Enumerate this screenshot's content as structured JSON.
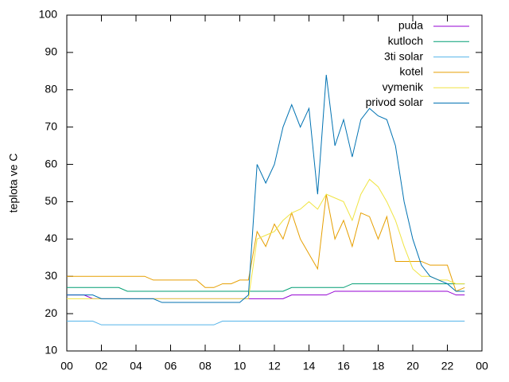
{
  "chart_data": {
    "type": "line",
    "ylabel": "teplota ve C",
    "x": [
      0,
      0.5,
      1,
      1.5,
      2,
      2.5,
      3,
      3.5,
      4,
      4.5,
      5,
      5.5,
      6,
      6.5,
      7,
      7.5,
      8,
      8.5,
      9,
      9.5,
      10,
      10.5,
      11,
      11.5,
      12,
      12.5,
      13,
      13.5,
      14,
      14.5,
      15,
      15.5,
      16,
      16.5,
      17,
      17.5,
      18,
      18.5,
      19,
      19.5,
      20,
      20.5,
      21,
      21.5,
      22,
      22.5,
      23
    ],
    "xlim": [
      0,
      24
    ],
    "xticks": [
      {
        "value": 0,
        "label": "00"
      },
      {
        "value": 2,
        "label": "02"
      },
      {
        "value": 4,
        "label": "04"
      },
      {
        "value": 6,
        "label": "06"
      },
      {
        "value": 8,
        "label": "08"
      },
      10,
      12,
      14,
      16,
      18,
      20,
      22,
      {
        "value": 24,
        "label": "00"
      }
    ],
    "ylim": [
      10,
      100
    ],
    "yticks": [
      10,
      20,
      30,
      40,
      50,
      60,
      70,
      80,
      90,
      100
    ],
    "legend": "top-right",
    "series": [
      {
        "name": "puda",
        "color": "#9400d3",
        "values": [
          25,
          25,
          25,
          24,
          24,
          24,
          24,
          24,
          24,
          24,
          24,
          24,
          24,
          24,
          24,
          24,
          24,
          24,
          24,
          24,
          24,
          24,
          24,
          24,
          24,
          24,
          25,
          25,
          25,
          25,
          25,
          26,
          26,
          26,
          26,
          26,
          26,
          26,
          26,
          26,
          26,
          26,
          26,
          26,
          26,
          25,
          25
        ]
      },
      {
        "name": "kutloch",
        "color": "#009e73",
        "values": [
          27,
          27,
          27,
          27,
          27,
          27,
          27,
          26,
          26,
          26,
          26,
          26,
          26,
          26,
          26,
          26,
          26,
          26,
          26,
          26,
          26,
          26,
          26,
          26,
          26,
          26,
          27,
          27,
          27,
          27,
          27,
          27,
          27,
          28,
          28,
          28,
          28,
          28,
          28,
          28,
          28,
          28,
          28,
          28,
          28,
          28,
          28
        ]
      },
      {
        "name": "3ti solar",
        "color": "#56b4e9",
        "values": [
          18,
          18,
          18,
          18,
          17,
          17,
          17,
          17,
          17,
          17,
          17,
          17,
          17,
          17,
          17,
          17,
          17,
          17,
          18,
          18,
          18,
          18,
          18,
          18,
          18,
          18,
          18,
          18,
          18,
          18,
          18,
          18,
          18,
          18,
          18,
          18,
          18,
          18,
          18,
          18,
          18,
          18,
          18,
          18,
          18,
          18,
          18
        ]
      },
      {
        "name": "kotel",
        "color": "#e69f00",
        "values": [
          30,
          30,
          30,
          30,
          30,
          30,
          30,
          30,
          30,
          30,
          29,
          29,
          29,
          29,
          29,
          29,
          27,
          27,
          28,
          28,
          29,
          29,
          42,
          38,
          44,
          40,
          47,
          40,
          36,
          32,
          52,
          40,
          45,
          38,
          47,
          46,
          40,
          46,
          34,
          34,
          34,
          34,
          33,
          33,
          33,
          26,
          27
        ]
      },
      {
        "name": "vymenik",
        "color": "#f0e442",
        "values": [
          24,
          24,
          24,
          24,
          24,
          24,
          24,
          24,
          24,
          24,
          24,
          24,
          24,
          24,
          24,
          24,
          24,
          24,
          24,
          24,
          24,
          24,
          40,
          41,
          42,
          45,
          47,
          48,
          50,
          48,
          52,
          51,
          50,
          45,
          52,
          56,
          54,
          50,
          45,
          38,
          32,
          30,
          30,
          29,
          29,
          28,
          28
        ]
      },
      {
        "name": "privod solar",
        "color": "#0072b2",
        "values": [
          25,
          25,
          25,
          25,
          24,
          24,
          24,
          24,
          24,
          24,
          24,
          23,
          23,
          23,
          23,
          23,
          23,
          23,
          23,
          23,
          23,
          25,
          60,
          55,
          60,
          70,
          76,
          70,
          75,
          52,
          84,
          65,
          72,
          62,
          72,
          75,
          73,
          72,
          65,
          50,
          40,
          33,
          30,
          29,
          28,
          26,
          26
        ]
      }
    ]
  }
}
